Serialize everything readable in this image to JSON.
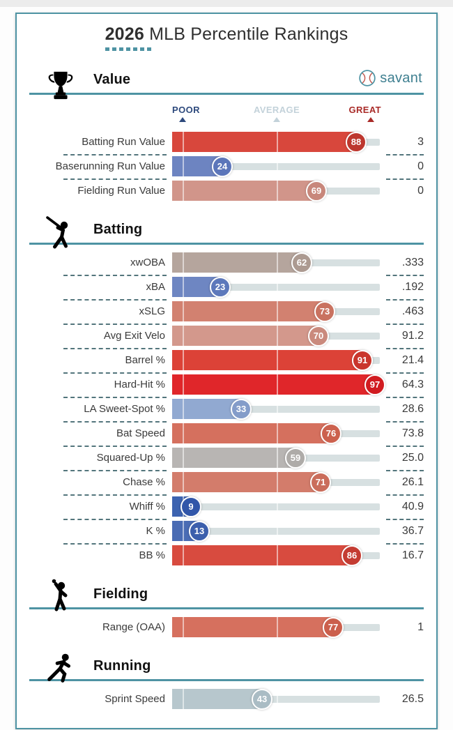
{
  "title": {
    "bold": "2026",
    "rest": " MLB Percentile Rankings"
  },
  "brand": {
    "name": "savant"
  },
  "scale": {
    "poor_label": "POOR",
    "average_label": "AVERAGE",
    "great_label": "GREAT"
  },
  "theme": {
    "accent_teal": "#4e93a3",
    "poor_color": "#2e4a7d",
    "average_color": "#c3d2da",
    "great_color": "#a92b28",
    "track_color": "#d7e0e1",
    "separator_color": "#53757c",
    "brand_teal": "#3e7f90"
  },
  "chart_data": {
    "type": "bar",
    "title": "2026 MLB Percentile Rankings",
    "value_range": [
      0,
      100
    ],
    "markers": {
      "poor_pct": 5,
      "average_pct": 50,
      "great_pct": 95
    },
    "sections": [
      {
        "name": "Value",
        "icon": "trophy-icon",
        "show_scale": true,
        "metrics": [
          {
            "label": "Batting Run Value",
            "percentile": 88,
            "value": "3",
            "bar_color": "#d8473c",
            "circle_color": "#bd372e"
          },
          {
            "label": "Baserunning Run Value",
            "percentile": 24,
            "value": "0",
            "bar_color": "#6d84c1",
            "circle_color": "#5c76ba"
          },
          {
            "label": "Fielding Run Value",
            "percentile": 69,
            "value": "0",
            "bar_color": "#d1958a",
            "circle_color": "#c8877b"
          }
        ]
      },
      {
        "name": "Batting",
        "icon": "batter-icon",
        "show_scale": false,
        "metrics": [
          {
            "label": "xwOBA",
            "percentile": 62,
            "value": ".333",
            "bar_color": "#b5a59d",
            "circle_color": "#ac9a91"
          },
          {
            "label": "xBA",
            "percentile": 23,
            "value": ".192",
            "bar_color": "#6e86c2",
            "circle_color": "#5d78bb"
          },
          {
            "label": "xSLG",
            "percentile": 73,
            "value": ".463",
            "bar_color": "#d28170",
            "circle_color": "#c97260"
          },
          {
            "label": "Avg Exit Velo",
            "percentile": 70,
            "value": "91.2",
            "bar_color": "#d3988c",
            "circle_color": "#ca8a7d"
          },
          {
            "label": "Barrel %",
            "percentile": 91,
            "value": "21.4",
            "bar_color": "#dc4237",
            "circle_color": "#c9352c"
          },
          {
            "label": "Hard-Hit %",
            "percentile": 97,
            "value": "64.3",
            "bar_color": "#e0262a",
            "circle_color": "#d11b20"
          },
          {
            "label": "LA Sweet-Spot %",
            "percentile": 33,
            "value": "28.6",
            "bar_color": "#91a9d1",
            "circle_color": "#849cc9"
          },
          {
            "label": "Bat Speed",
            "percentile": 76,
            "value": "73.8",
            "bar_color": "#d5705e",
            "circle_color": "#cc614e"
          },
          {
            "label": "Squared-Up %",
            "percentile": 59,
            "value": "25.0",
            "bar_color": "#b8b5b3",
            "circle_color": "#aeaba8"
          },
          {
            "label": "Chase %",
            "percentile": 71,
            "value": "26.1",
            "bar_color": "#d37c6b",
            "circle_color": "#ca6d5b"
          },
          {
            "label": "Whiff %",
            "percentile": 9,
            "value": "40.9",
            "bar_color": "#3d63b0",
            "circle_color": "#3156a9"
          },
          {
            "label": "K %",
            "percentile": 13,
            "value": "36.7",
            "bar_color": "#4a6cb4",
            "circle_color": "#3c5fac"
          },
          {
            "label": "BB %",
            "percentile": 86,
            "value": "16.7",
            "bar_color": "#d84b3f",
            "circle_color": "#c43c32"
          }
        ]
      },
      {
        "name": "Fielding",
        "icon": "fielder-icon",
        "show_scale": false,
        "metrics": [
          {
            "label": "Range (OAA)",
            "percentile": 77,
            "value": "1",
            "bar_color": "#d6705e",
            "circle_color": "#cb5f4c"
          }
        ]
      },
      {
        "name": "Running",
        "icon": "runner-icon",
        "show_scale": false,
        "metrics": [
          {
            "label": "Sprint Speed",
            "percentile": 43,
            "value": "26.5",
            "bar_color": "#b7c7cd",
            "circle_color": "#aabcc4"
          }
        ]
      }
    ]
  }
}
